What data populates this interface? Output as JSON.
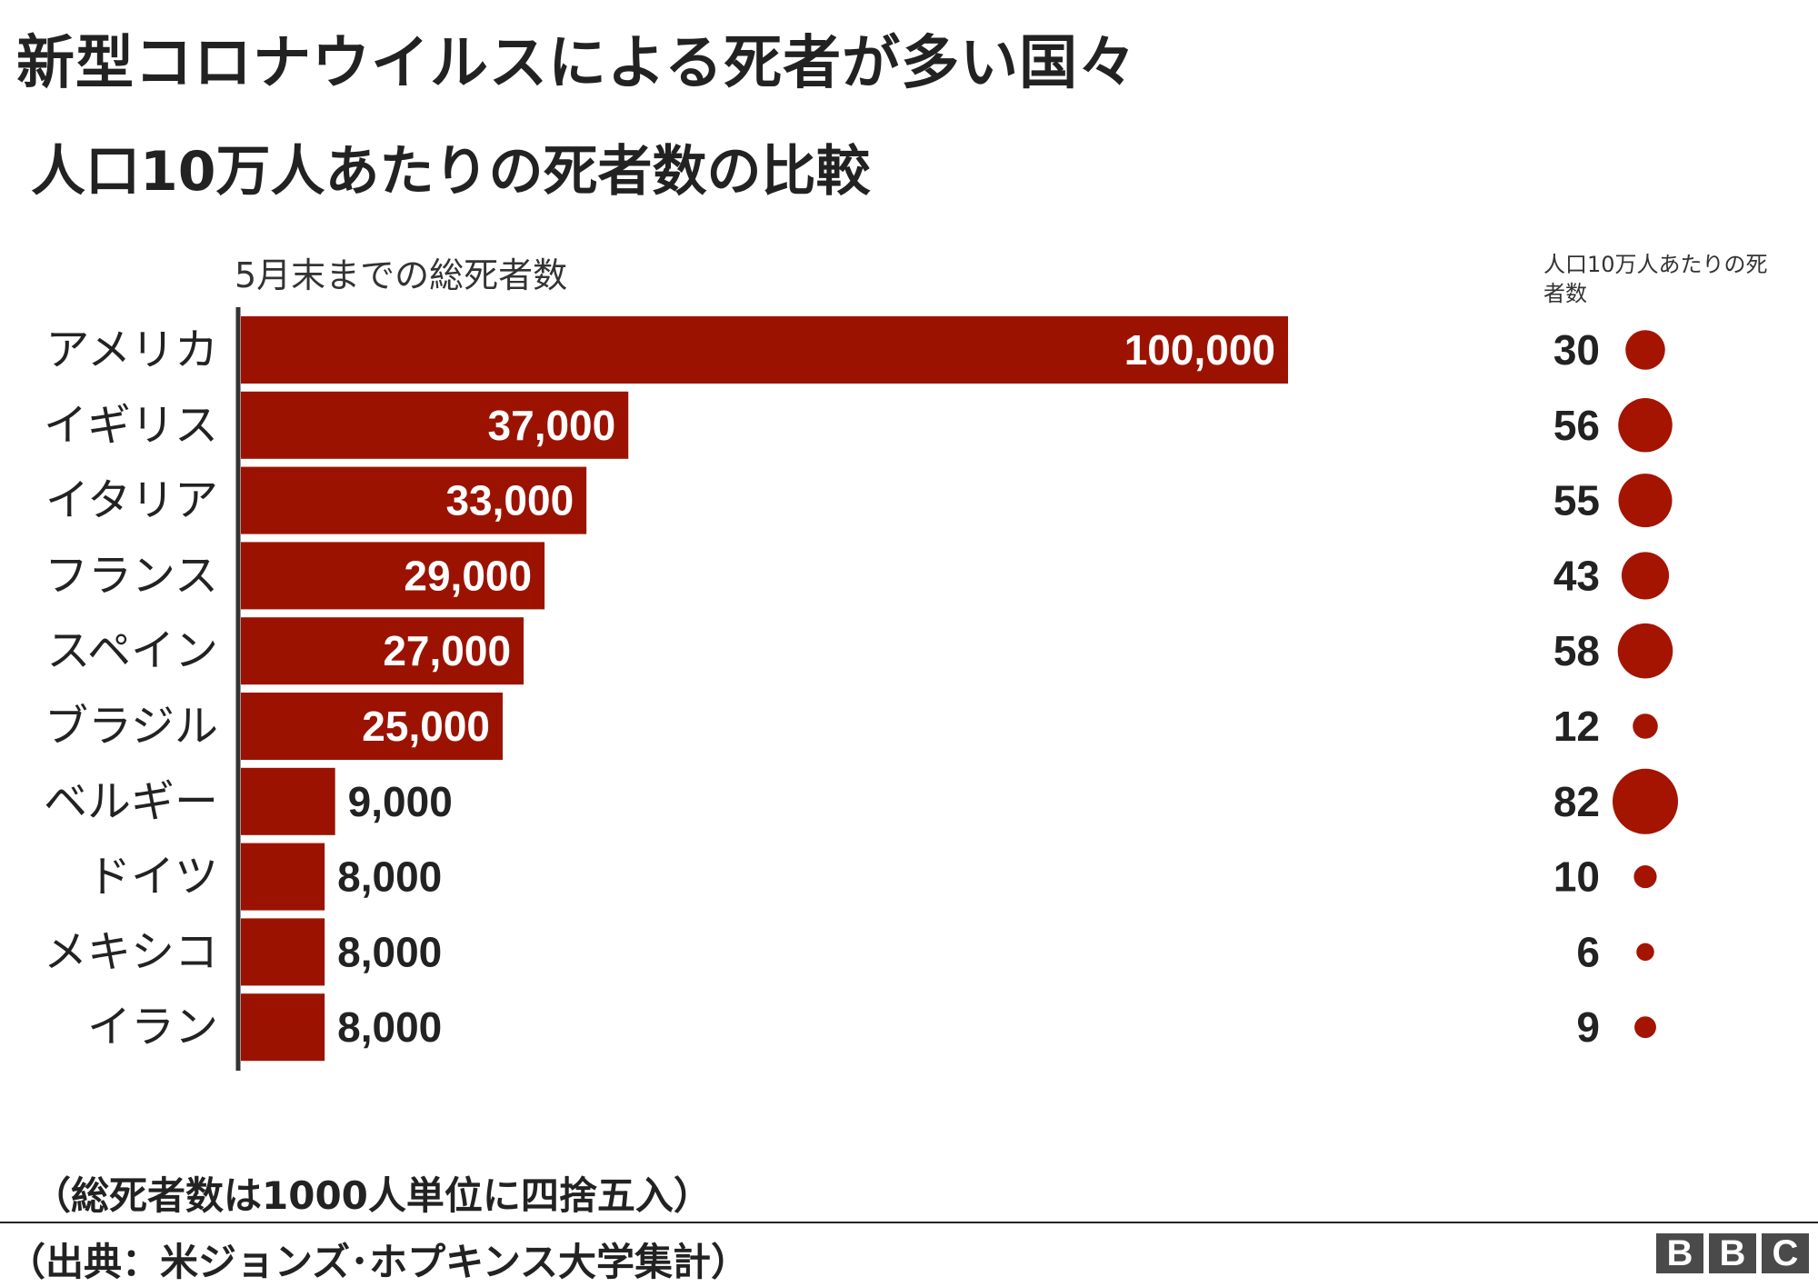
{
  "title": "新型コロナウイルスによる死者が多い国々",
  "subtitle": "人口10万人あたりの死者数の比較",
  "bar_header": "5月末までの総死者数",
  "rate_header": "人口10万人あたりの死者数",
  "note": "（総死者数は1000人単位に四捨五入）",
  "source": "（出典：米ジョンズ･ホプキンス大学集計）",
  "logo": [
    "B",
    "B",
    "C"
  ],
  "colors": {
    "bar": "#9b1300",
    "dot": "#a41400",
    "bar_text_inside": "#ffffff",
    "bar_text_outside": "#222222",
    "axis": "#333333"
  },
  "chart_data": {
    "type": "bar",
    "orientation": "horizontal",
    "categories": [
      "アメリカ",
      "イギリス",
      "イタリア",
      "フランス",
      "スペイン",
      "ブラジル",
      "ベルギー",
      "ドイツ",
      "メキシコ",
      "イラン"
    ],
    "values": [
      100000,
      37000,
      33000,
      29000,
      27000,
      25000,
      9000,
      8000,
      8000,
      8000
    ],
    "value_labels": [
      "100,000",
      "37,000",
      "33,000",
      "29,000",
      "27,000",
      "25,000",
      "9,000",
      "8,000",
      "8,000",
      "8,000"
    ],
    "deaths_per_100k": [
      30,
      56,
      55,
      43,
      58,
      12,
      82,
      10,
      6,
      9
    ],
    "xlim": [
      0,
      100000
    ],
    "grid": false,
    "legend": "none"
  }
}
